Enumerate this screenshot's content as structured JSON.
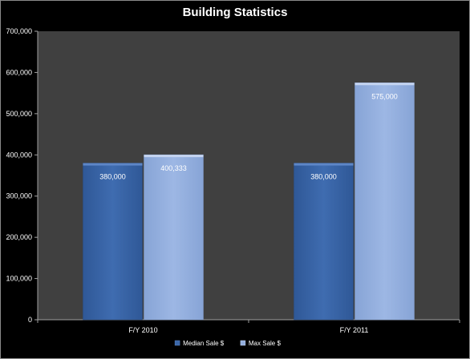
{
  "chart_data": {
    "type": "bar",
    "title": "Building Statistics",
    "categories": [
      "F/Y 2010",
      "F/Y 2011"
    ],
    "series": [
      {
        "name": "Median Sale $",
        "values": [
          380000,
          380000
        ],
        "labels": [
          "380,000",
          "380,000"
        ],
        "color": "#3a66a8"
      },
      {
        "name": "Max Sale $",
        "values": [
          400333,
          575000
        ],
        "labels": [
          "400,333",
          "575,000"
        ],
        "color": "#93aedd"
      }
    ],
    "ylim": [
      0,
      700000
    ],
    "yticks": [
      0,
      100000,
      200000,
      300000,
      400000,
      500000,
      600000,
      700000
    ],
    "ytick_labels": [
      "0",
      "100,000",
      "200,000",
      "300,000",
      "400,000",
      "500,000",
      "600,000",
      "700,000"
    ],
    "grid": false,
    "legend": "bottom",
    "plot_background": "#404040",
    "chart_background": "#000000"
  }
}
